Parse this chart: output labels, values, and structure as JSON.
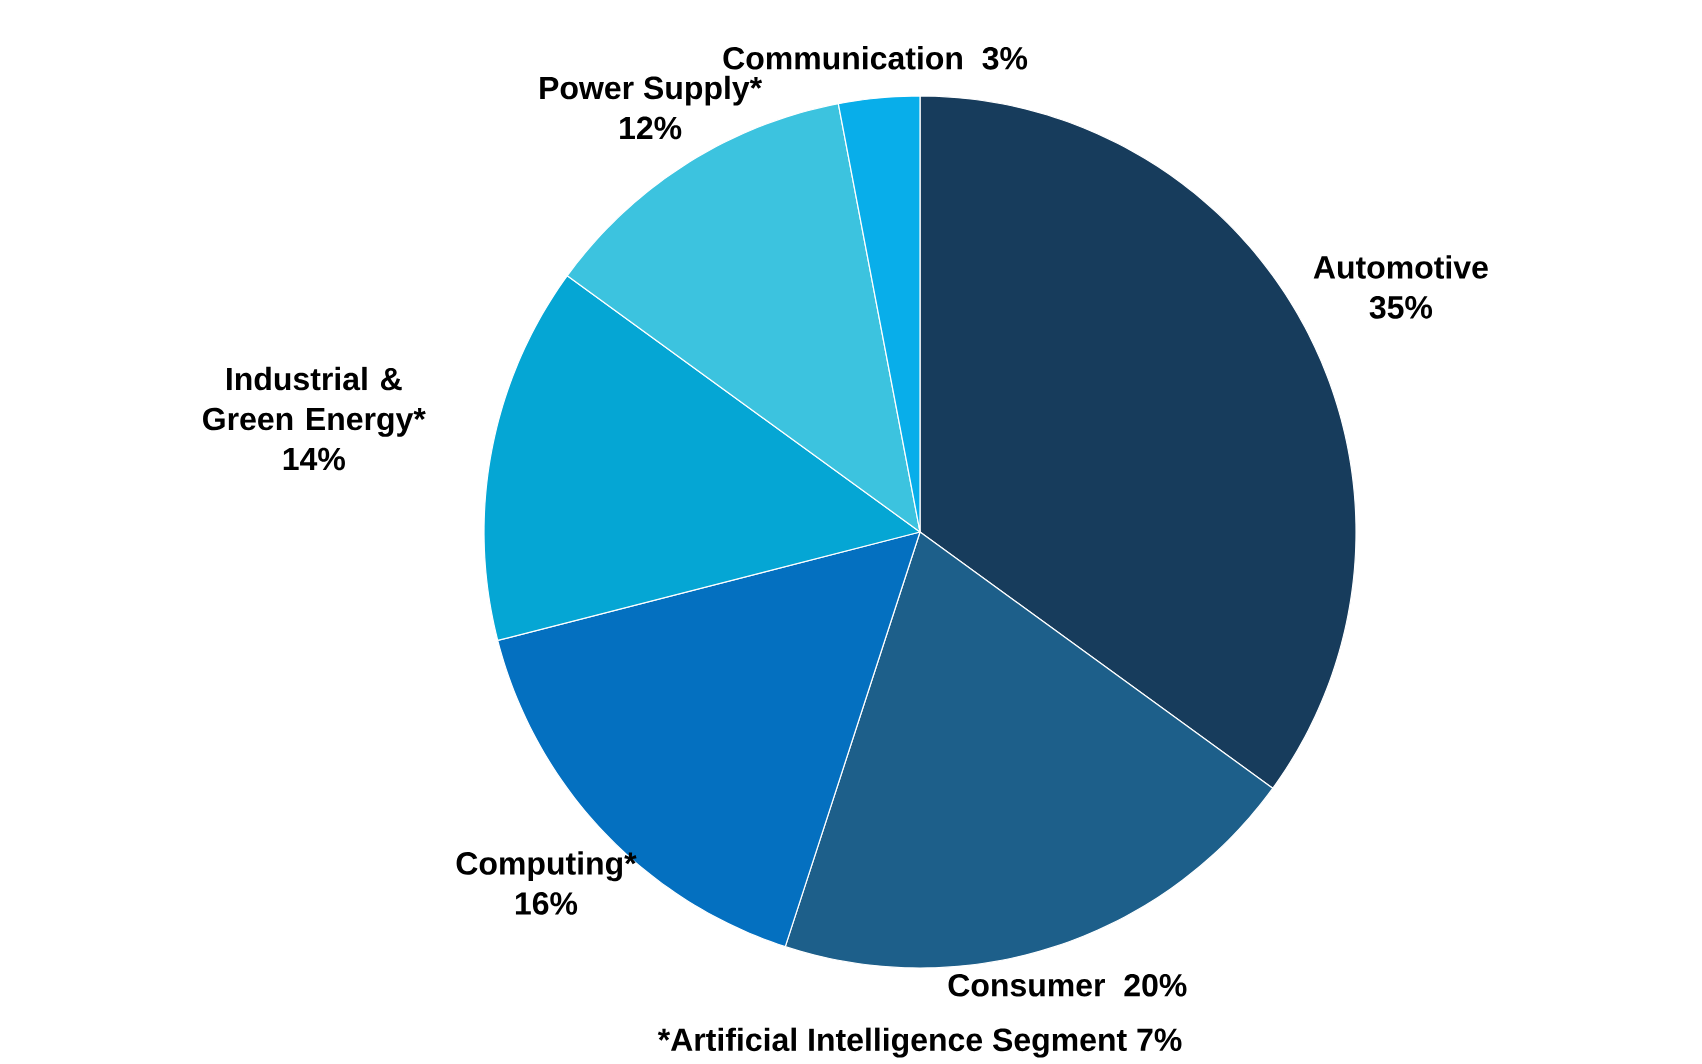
{
  "chart_data": {
    "type": "pie",
    "categories": [
      "Automotive",
      "Consumer",
      "Computing*",
      "Industrial & Green Energy*",
      "Power Supply*",
      "Communication"
    ],
    "values": [
      35,
      20,
      16,
      14,
      12,
      3
    ],
    "value_labels": [
      "35%",
      "20%",
      "16%",
      "14%",
      "12%",
      "3%"
    ],
    "colors": [
      "#173c5c",
      "#1d5f8a",
      "#0470c0",
      "#05a6d4",
      "#3cc3df",
      "#08aeea"
    ],
    "annotations": [
      "*Artificial Intelligence Segment 7%"
    ]
  }
}
